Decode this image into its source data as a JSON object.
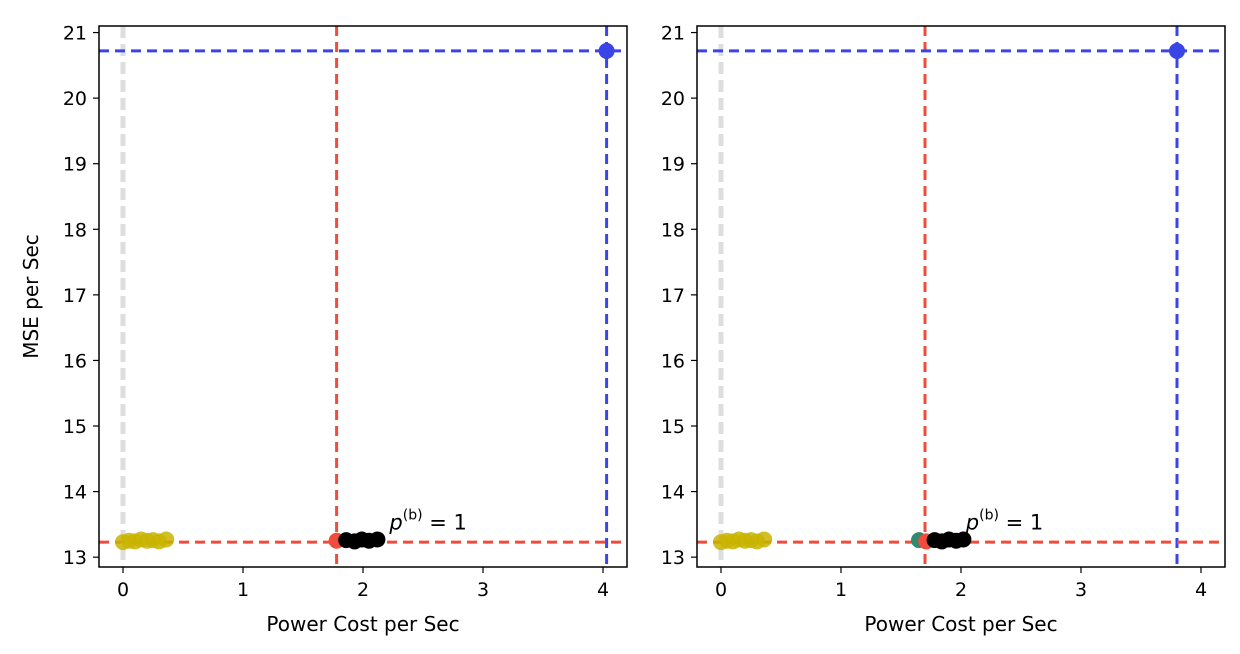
{
  "colors": {
    "blue": "#3a45e6",
    "red": "#ef4c3c",
    "gray": "#c8c8c8",
    "black": "#000000",
    "yellow": "#c8b400",
    "teal": "#2e8b6e"
  },
  "chart_data": [
    {
      "type": "scatter",
      "title": "",
      "xlabel": "Power Cost per Sec",
      "ylabel": "MSE per Sec",
      "xlim": [
        -0.2,
        4.2
      ],
      "ylim": [
        12.85,
        21.1
      ],
      "xticks": [
        0,
        1,
        2,
        3,
        4
      ],
      "yticks": [
        13,
        14,
        15,
        16,
        17,
        18,
        19,
        20,
        21
      ],
      "hlines": [
        {
          "y": 20.72,
          "color": "blue"
        },
        {
          "y": 13.23,
          "color": "red"
        }
      ],
      "vlines": [
        {
          "x": 4.03,
          "color": "blue"
        },
        {
          "x": 1.78,
          "color": "red"
        },
        {
          "x": 0.0,
          "color": "gray"
        }
      ],
      "series": [
        {
          "color": "blue",
          "x": [
            4.03
          ],
          "y": [
            20.72
          ]
        },
        {
          "color": "red",
          "x": [
            1.78
          ],
          "y": [
            13.25
          ]
        },
        {
          "color": "black",
          "x": [
            1.86,
            1.93,
            1.99,
            2.05,
            2.12
          ],
          "y": [
            13.26,
            13.24,
            13.27,
            13.25,
            13.27
          ]
        },
        {
          "color": "yellow",
          "x": [
            0.0,
            0.05,
            0.1,
            0.15,
            0.2,
            0.25,
            0.3,
            0.36
          ],
          "y": [
            13.23,
            13.25,
            13.24,
            13.27,
            13.25,
            13.26,
            13.24,
            13.27
          ]
        }
      ],
      "annotation": {
        "base": "p",
        "sup": "(b)",
        "rest": " = 1",
        "x": 2.22,
        "y": 13.42
      }
    },
    {
      "type": "scatter",
      "title": "",
      "xlabel": "Power Cost per Sec",
      "ylabel": "",
      "xlim": [
        -0.2,
        4.2
      ],
      "ylim": [
        12.85,
        21.1
      ],
      "xticks": [
        0,
        1,
        2,
        3,
        4
      ],
      "yticks": [
        13,
        14,
        15,
        16,
        17,
        18,
        19,
        20,
        21
      ],
      "hlines": [
        {
          "y": 20.72,
          "color": "blue"
        },
        {
          "y": 13.23,
          "color": "red"
        }
      ],
      "vlines": [
        {
          "x": 3.8,
          "color": "blue"
        },
        {
          "x": 1.7,
          "color": "red"
        },
        {
          "x": 0.0,
          "color": "gray"
        }
      ],
      "series": [
        {
          "color": "blue",
          "x": [
            3.8
          ],
          "y": [
            20.72
          ]
        },
        {
          "color": "teal",
          "x": [
            1.65
          ],
          "y": [
            13.26
          ]
        },
        {
          "color": "red",
          "x": [
            1.71
          ],
          "y": [
            13.24
          ]
        },
        {
          "color": "black",
          "x": [
            1.78,
            1.84,
            1.9,
            1.96,
            2.02
          ],
          "y": [
            13.26,
            13.24,
            13.27,
            13.25,
            13.27
          ]
        },
        {
          "color": "yellow",
          "x": [
            0.0,
            0.05,
            0.1,
            0.15,
            0.2,
            0.25,
            0.3,
            0.36
          ],
          "y": [
            13.23,
            13.25,
            13.24,
            13.27,
            13.25,
            13.26,
            13.24,
            13.27
          ]
        }
      ],
      "annotation": {
        "base": "p",
        "sup": "(b)",
        "rest": " = 1",
        "x": 2.04,
        "y": 13.42
      }
    }
  ]
}
